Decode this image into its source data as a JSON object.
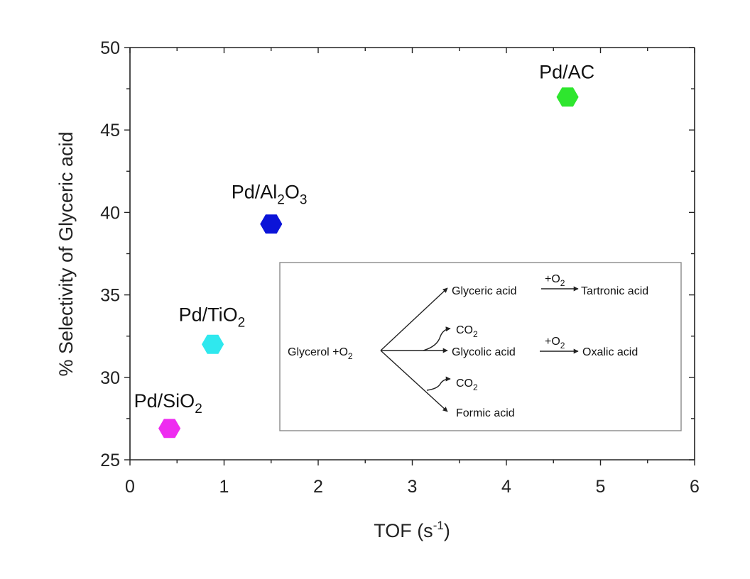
{
  "chart_data": {
    "type": "scatter",
    "xlabel": "TOF (s",
    "xlabel_sup": "-1",
    "xlabel_end": ")",
    "ylabel": "% Selectivity of Glyceric acid",
    "xlim": [
      0,
      6
    ],
    "ylim": [
      25,
      50
    ],
    "x_ticks": [
      "0",
      "1",
      "2",
      "3",
      "4",
      "5",
      "6"
    ],
    "y_ticks": [
      "25",
      "30",
      "35",
      "40",
      "45",
      "50"
    ],
    "points": [
      {
        "label_main": "Pd/SiO",
        "label_sub": "2",
        "label_end": "",
        "x": 0.42,
        "y": 26.9,
        "color": "#ee2cf0"
      },
      {
        "label_main": "Pd/TiO",
        "label_sub": "2",
        "label_end": "",
        "x": 0.88,
        "y": 32.0,
        "color": "#2fe8ee"
      },
      {
        "label_main": "Pd/Al",
        "label_sub": "2",
        "label_end": "O",
        "label_sub2": "3",
        "x": 1.5,
        "y": 39.3,
        "color": "#0b14d8"
      },
      {
        "label_main": "Pd/AC",
        "label_sub": "",
        "label_end": "",
        "x": 4.65,
        "y": 47.0,
        "color": "#2ee62e"
      }
    ],
    "inset": {
      "reactant": "Glycerol +O",
      "reactant_sub": "2",
      "glyceric": "Glyceric acid",
      "o2_top": "+O",
      "o2_top_sub": "2",
      "tartronic": "Tartronic acid",
      "co2_a": "CO",
      "co2_a_sub": "2",
      "glycolic": "Glycolic acid",
      "o2_mid": "+O",
      "o2_mid_sub": "2",
      "oxalic": "Oxalic acid",
      "co2_b": "CO",
      "co2_b_sub": "2",
      "formic": "Formic acid"
    }
  }
}
